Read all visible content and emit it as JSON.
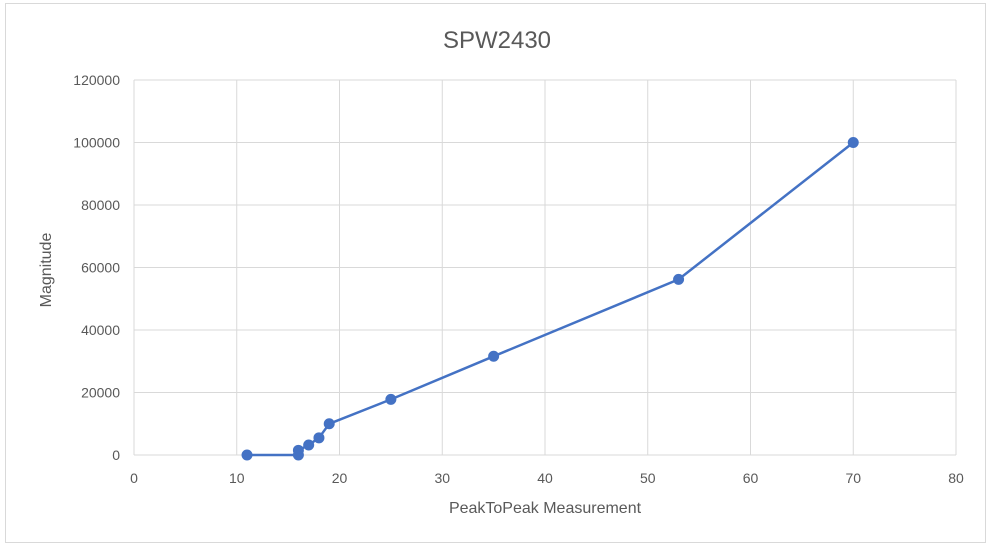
{
  "chart_data": {
    "type": "scatter",
    "title": "SPW2430",
    "xlabel": "PeakToPeak Measurement",
    "ylabel": "Magnitude",
    "xlim": [
      0,
      80
    ],
    "ylim": [
      0,
      120000
    ],
    "x_ticks": [
      "0",
      "10",
      "20",
      "30",
      "40",
      "50",
      "60",
      "70",
      "80"
    ],
    "y_ticks": [
      "0",
      "20000",
      "40000",
      "60000",
      "80000",
      "100000",
      "120000"
    ],
    "grid": true,
    "legend": "none",
    "series": [
      {
        "color": "#4472c4",
        "points": [
          [
            11,
            0
          ],
          [
            16,
            0
          ],
          [
            16,
            1500
          ],
          [
            17,
            3200
          ],
          [
            18,
            5500
          ],
          [
            19,
            10000
          ],
          [
            25,
            17800
          ],
          [
            35,
            31600
          ],
          [
            53,
            56200
          ],
          [
            70,
            100000
          ]
        ]
      }
    ]
  }
}
